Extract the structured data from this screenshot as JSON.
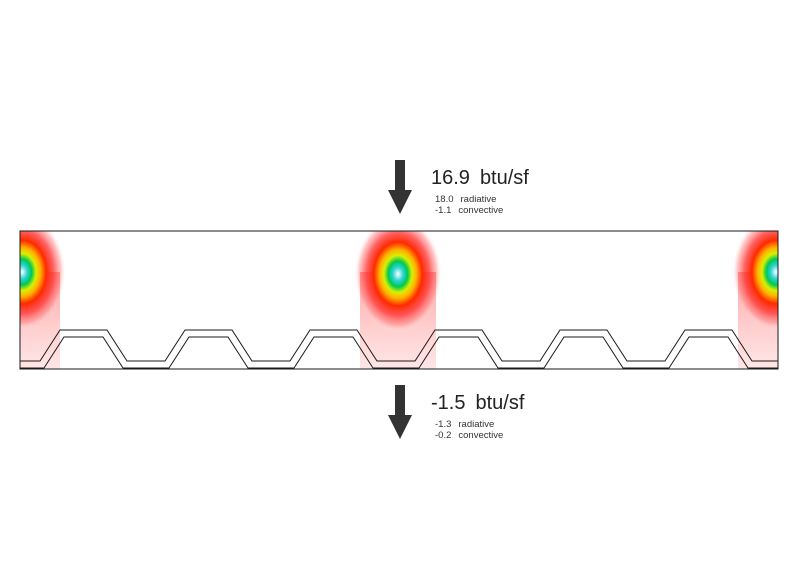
{
  "top_flux": {
    "total": "16.9",
    "unit": "btu/sf",
    "radiative_value": "18.0",
    "radiative_label": "radiative",
    "convective_value": "-1.1",
    "convective_label": "convective"
  },
  "bottom_flux": {
    "total": "-1.5",
    "unit": "btu/sf",
    "radiative_value": "-1.3",
    "radiative_label": "radiative",
    "convective_value": "-0.2",
    "convective_label": "convective"
  },
  "colors": {
    "arrow": "#333333",
    "outline": "#1a1a1a",
    "hot": "#ff0000",
    "warm": "#ff8800",
    "yellow": "#ffee00",
    "green": "#00c853",
    "cyan": "#2ad4d4"
  }
}
